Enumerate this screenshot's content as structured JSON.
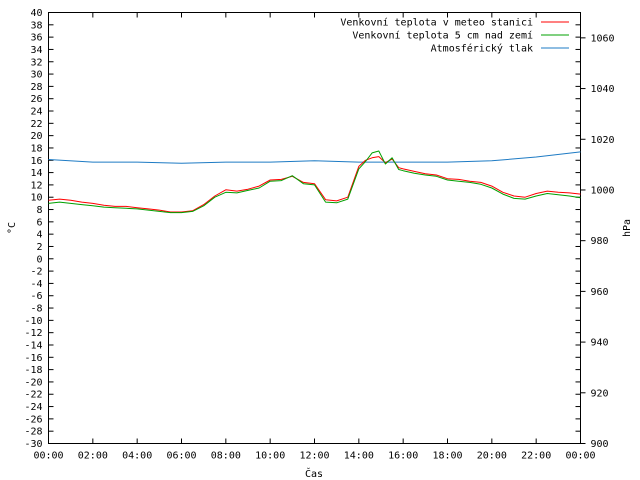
{
  "chart_data": {
    "type": "line",
    "xlabel": "Čas",
    "ylabel_left": "°C",
    "ylabel_right": "hPa",
    "x_ticks": [
      "00:00",
      "02:00",
      "04:00",
      "06:00",
      "08:00",
      "10:00",
      "12:00",
      "14:00",
      "16:00",
      "18:00",
      "20:00",
      "22:00",
      "00:00"
    ],
    "xlim": [
      0,
      24
    ],
    "ylim_left": [
      -30,
      40
    ],
    "ylim_right": [
      900,
      1070
    ],
    "y_left_ticks": [
      40,
      38,
      36,
      34,
      32,
      30,
      28,
      26,
      24,
      22,
      20,
      18,
      16,
      14,
      12,
      10,
      8,
      6,
      4,
      2,
      0,
      -2,
      -4,
      -6,
      -8,
      -10,
      -12,
      -14,
      -16,
      -18,
      -20,
      -22,
      -24,
      -26,
      -28,
      -30
    ],
    "y_right_ticks": [
      1060,
      1040,
      1020,
      1000,
      980,
      960,
      940,
      920,
      900
    ],
    "legend_position": "top-right",
    "series": [
      {
        "name": "Venkovní teplota v meteo stanici",
        "color": "#ff0000",
        "axis": "left",
        "x": [
          0,
          0.5,
          1,
          1.5,
          2,
          2.5,
          3,
          3.5,
          4,
          4.5,
          5,
          5.5,
          6,
          6.5,
          7,
          7.5,
          8,
          8.5,
          9,
          9.5,
          10,
          10.5,
          11,
          11.5,
          12,
          12.5,
          13,
          13.5,
          14,
          14.3,
          14.6,
          14.9,
          15.2,
          15.5,
          15.8,
          16,
          16.5,
          17,
          17.5,
          18,
          18.5,
          19,
          19.5,
          20,
          20.5,
          21,
          21.5,
          22,
          22.5,
          23,
          23.5,
          24
        ],
        "values": [
          9.5,
          9.7,
          9.5,
          9.2,
          9.0,
          8.7,
          8.5,
          8.5,
          8.3,
          8.1,
          7.9,
          7.6,
          7.6,
          7.8,
          8.8,
          10.2,
          11.2,
          11.0,
          11.3,
          11.8,
          12.8,
          12.9,
          13.4,
          12.4,
          12.2,
          9.6,
          9.4,
          10.0,
          15.0,
          16.0,
          16.4,
          16.6,
          15.6,
          16.2,
          14.8,
          14.6,
          14.2,
          13.8,
          13.6,
          13.0,
          12.9,
          12.6,
          12.4,
          11.8,
          10.8,
          10.2,
          10.0,
          10.6,
          11.0,
          10.8,
          10.7,
          10.5
        ]
      },
      {
        "name": "Venkovní teplota 5 cm nad zemí",
        "color": "#00a000",
        "axis": "left",
        "x": [
          0,
          0.5,
          1,
          1.5,
          2,
          2.5,
          3,
          3.5,
          4,
          4.5,
          5,
          5.5,
          6,
          6.5,
          7,
          7.5,
          8,
          8.5,
          9,
          9.5,
          10,
          10.5,
          11,
          11.5,
          12,
          12.5,
          13,
          13.5,
          14,
          14.3,
          14.6,
          14.9,
          15.2,
          15.5,
          15.8,
          16,
          16.5,
          17,
          17.5,
          18,
          18.5,
          19,
          19.5,
          20,
          20.5,
          21,
          21.5,
          22,
          22.5,
          23,
          23.5,
          24
        ],
        "values": [
          9.0,
          9.2,
          9.0,
          8.8,
          8.6,
          8.4,
          8.3,
          8.2,
          8.1,
          7.9,
          7.7,
          7.5,
          7.5,
          7.7,
          8.6,
          10.0,
          10.8,
          10.7,
          11.1,
          11.5,
          12.6,
          12.7,
          13.5,
          12.2,
          12.0,
          9.2,
          9.1,
          9.7,
          14.6,
          15.8,
          17.2,
          17.5,
          15.4,
          16.4,
          14.5,
          14.3,
          13.9,
          13.6,
          13.4,
          12.8,
          12.6,
          12.4,
          12.1,
          11.5,
          10.5,
          9.8,
          9.7,
          10.2,
          10.6,
          10.4,
          10.2,
          9.9
        ]
      },
      {
        "name": "Atmosférický tlak",
        "color": "#1e7bc4",
        "axis": "right",
        "x": [
          0,
          2,
          4,
          6,
          8,
          10,
          12,
          14,
          16,
          18,
          20,
          22,
          24
        ],
        "values": [
          1012,
          1011,
          1011,
          1010.5,
          1011,
          1011,
          1011.5,
          1011,
          1011,
          1011,
          1011.5,
          1013,
          1015
        ]
      }
    ]
  }
}
